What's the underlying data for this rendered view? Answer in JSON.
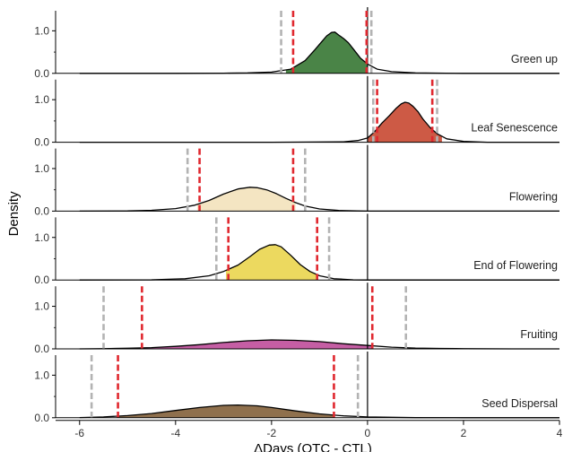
{
  "chart_data": {
    "type": "area",
    "title": "",
    "xlabel": "ΔDays (OTC - CTL)",
    "ylabel": "Density",
    "xlim": [
      -6.5,
      4
    ],
    "ylim": [
      0,
      1.45
    ],
    "x_ticks": [
      -6,
      -4,
      -2,
      0,
      2,
      4
    ],
    "x_tick_labels": [
      "-6",
      "-4",
      "-2",
      "0",
      "2",
      "4"
    ],
    "y_ticks": [
      0.0,
      1.0
    ],
    "y_tick_labels": [
      "0.0",
      "1.0"
    ],
    "reference_line_x": 0,
    "grid": false,
    "legend": "none",
    "colors": {
      "ci_inner": "#e0282f",
      "ci_outer": "#b3b3b3",
      "axis": "#000000"
    },
    "panels": [
      {
        "name": "Green up",
        "fill_color": "#4a8447",
        "density": {
          "x": [
            -6.0,
            -4.0,
            -3.0,
            -2.5,
            -2.0,
            -1.6,
            -1.3,
            -1.1,
            -0.95,
            -0.85,
            -0.75,
            -0.68,
            -0.6,
            -0.5,
            -0.4,
            -0.3,
            -0.15,
            0.0,
            0.2,
            0.5,
            1.0,
            2.0,
            4.0
          ],
          "y": [
            0.0,
            0.0,
            0.005,
            0.01,
            0.03,
            0.1,
            0.3,
            0.55,
            0.75,
            0.88,
            0.96,
            0.97,
            0.9,
            0.82,
            0.72,
            0.58,
            0.36,
            0.22,
            0.1,
            0.04,
            0.01,
            0.0,
            0.0
          ]
        },
        "fill_range": [
          -1.7,
          0.0
        ],
        "ci_inner": [
          -1.55,
          -0.02
        ],
        "ci_outer": [
          -1.8,
          0.08
        ]
      },
      {
        "name": "Leaf Senescence",
        "fill_color": "#cd5a45",
        "density": {
          "x": [
            -6.0,
            -2.0,
            -0.5,
            -0.2,
            0.0,
            0.15,
            0.3,
            0.45,
            0.6,
            0.7,
            0.78,
            0.86,
            0.95,
            1.05,
            1.15,
            1.3,
            1.45,
            1.65,
            2.0,
            2.5,
            4.0
          ],
          "y": [
            0.0,
            0.0,
            0.01,
            0.04,
            0.1,
            0.25,
            0.45,
            0.62,
            0.8,
            0.9,
            0.94,
            0.92,
            0.84,
            0.72,
            0.55,
            0.35,
            0.2,
            0.08,
            0.02,
            0.0,
            0.0
          ]
        },
        "fill_range": [
          0.0,
          1.55
        ],
        "ci_inner": [
          0.2,
          1.35
        ],
        "ci_outer": [
          0.12,
          1.45
        ]
      },
      {
        "name": "Flowering",
        "fill_color": "#f4e5c2",
        "density": {
          "x": [
            -6.0,
            -5.0,
            -4.5,
            -4.0,
            -3.6,
            -3.3,
            -3.0,
            -2.7,
            -2.45,
            -2.3,
            -2.1,
            -1.9,
            -1.7,
            -1.5,
            -1.3,
            -1.0,
            -0.6,
            0.0,
            1.0,
            4.0
          ],
          "y": [
            0.0,
            0.005,
            0.02,
            0.06,
            0.14,
            0.25,
            0.4,
            0.52,
            0.56,
            0.55,
            0.5,
            0.41,
            0.3,
            0.2,
            0.12,
            0.05,
            0.015,
            0.0,
            0.0,
            0.0
          ]
        },
        "fill_range": [
          -3.55,
          -1.5
        ],
        "ci_inner": [
          -3.5,
          -1.55
        ],
        "ci_outer": [
          -3.75,
          -1.3
        ]
      },
      {
        "name": "End of Flowering",
        "fill_color": "#ecd95f",
        "density": {
          "x": [
            -6.0,
            -4.5,
            -3.8,
            -3.3,
            -3.0,
            -2.7,
            -2.45,
            -2.25,
            -2.05,
            -1.92,
            -1.8,
            -1.6,
            -1.4,
            -1.2,
            -1.0,
            -0.7,
            -0.3,
            0.0,
            4.0
          ],
          "y": [
            0.0,
            0.005,
            0.03,
            0.1,
            0.2,
            0.35,
            0.55,
            0.72,
            0.82,
            0.83,
            0.78,
            0.58,
            0.36,
            0.2,
            0.1,
            0.03,
            0.005,
            0.0,
            0.0
          ]
        },
        "fill_range": [
          -2.95,
          -1.05
        ],
        "ci_inner": [
          -2.9,
          -1.05
        ],
        "ci_outer": [
          -3.15,
          -0.8
        ]
      },
      {
        "name": "Fruiting",
        "fill_color": "#c55ea4",
        "density": {
          "x": [
            -6.0,
            -5.5,
            -5.0,
            -4.5,
            -4.0,
            -3.5,
            -3.0,
            -2.5,
            -2.0,
            -1.5,
            -1.0,
            -0.5,
            0.0,
            0.5,
            1.0,
            1.5,
            2.0,
            3.0,
            4.0
          ],
          "y": [
            0.0,
            0.005,
            0.015,
            0.03,
            0.06,
            0.1,
            0.15,
            0.19,
            0.21,
            0.2,
            0.17,
            0.12,
            0.08,
            0.04,
            0.02,
            0.01,
            0.004,
            0.0,
            0.0
          ]
        },
        "fill_range": [
          -4.65,
          0.1
        ],
        "ci_inner": [
          -4.7,
          0.1
        ],
        "ci_outer": [
          -5.5,
          0.8
        ]
      },
      {
        "name": "Seed Dispersal",
        "fill_color": "#8f704d",
        "density": {
          "x": [
            -6.0,
            -5.5,
            -5.0,
            -4.5,
            -4.0,
            -3.5,
            -3.0,
            -2.7,
            -2.3,
            -2.0,
            -1.5,
            -1.0,
            -0.5,
            0.0,
            0.5,
            1.0,
            2.0,
            4.0
          ],
          "y": [
            0.005,
            0.02,
            0.05,
            0.1,
            0.17,
            0.24,
            0.29,
            0.3,
            0.28,
            0.24,
            0.16,
            0.09,
            0.045,
            0.02,
            0.01,
            0.003,
            0.0,
            0.0
          ]
        },
        "fill_range": [
          -5.2,
          -0.7
        ],
        "ci_inner": [
          -5.2,
          -0.7
        ],
        "ci_outer": [
          -5.75,
          -0.2
        ]
      }
    ]
  }
}
